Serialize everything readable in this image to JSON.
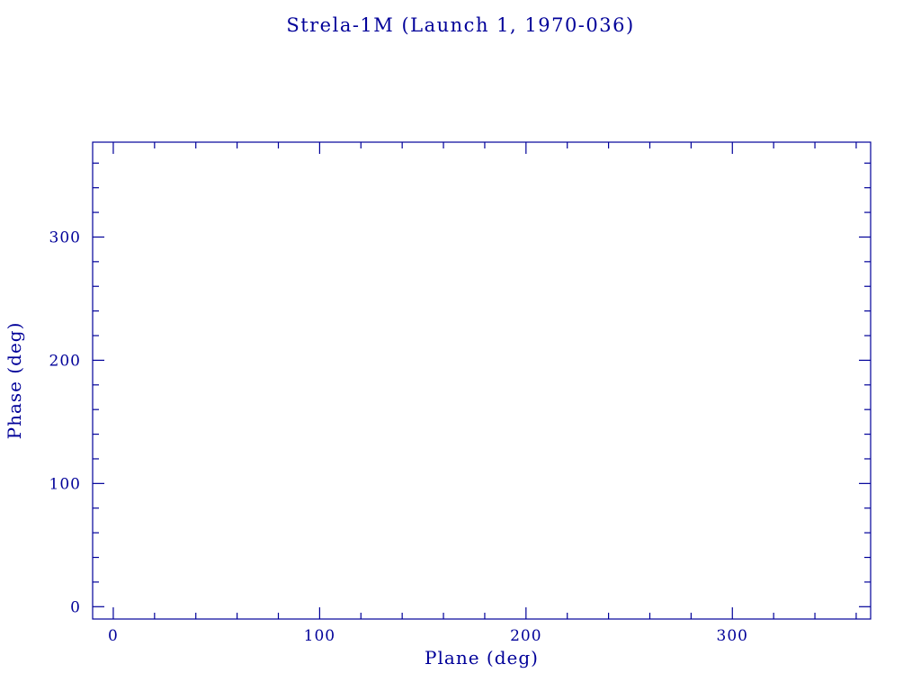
{
  "chart_data": {
    "type": "scatter",
    "title": "Strela-1M (Launch 1, 1970-036)",
    "xlabel": "Plane (deg)",
    "ylabel": "Phase (deg)",
    "xlim": [
      -10,
      367
    ],
    "ylim": [
      -10,
      377
    ],
    "x_major_ticks": [
      0,
      100,
      200,
      300
    ],
    "y_major_ticks": [
      0,
      100,
      200,
      300
    ],
    "minor_tick_interval": 20,
    "series": [],
    "points": [],
    "grid": false,
    "legend": "none",
    "axis_color": "#000099",
    "background": "#ffffff"
  }
}
